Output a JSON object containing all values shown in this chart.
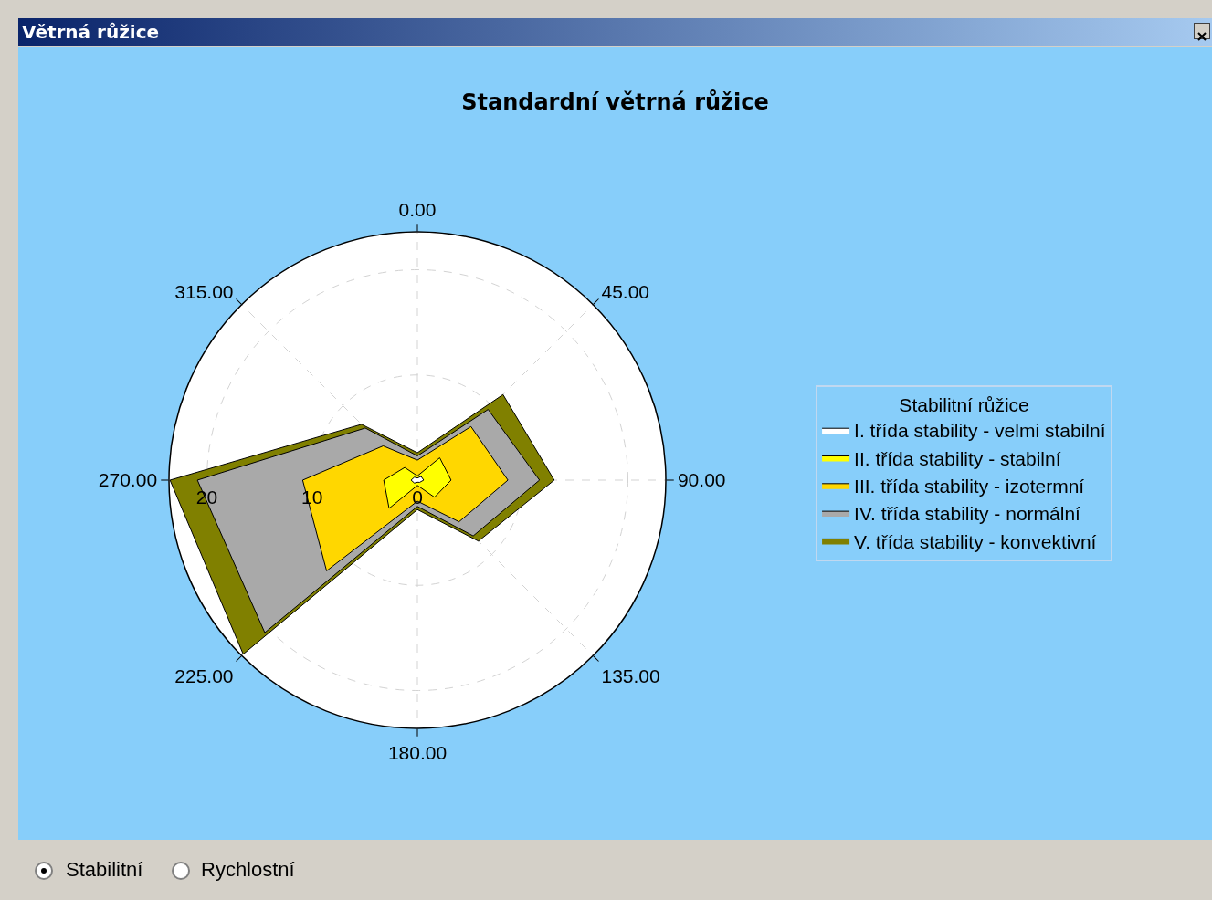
{
  "chart_data": {
    "type": "radar",
    "title": "Standardní větrná růžice",
    "legend_title": "Stabilitní růžice",
    "legend": "right",
    "grid": true,
    "annotations": [
      "Větrná růžice",
      "Stabilitní",
      "Rychlostní"
    ],
    "categories": [
      "0.00",
      "45.00",
      "90.00",
      "135.00",
      "180.00",
      "225.00",
      "270.00",
      "315.00"
    ],
    "ylim": [
      0,
      23.6
    ],
    "yticks": [
      0,
      10,
      20
    ],
    "series": [
      {
        "name": "I. třída stability - velmi stabilní",
        "color": "#ffffff",
        "values": [
          0.2,
          0.5,
          0.6,
          0.3,
          0.2,
          0.4,
          0.6,
          0.4
        ]
      },
      {
        "name": "II. třída stability - stabilní",
        "color": "#ffff00",
        "values": [
          0.4,
          3.0,
          3.2,
          2.3,
          0.5,
          3.8,
          3.2,
          1.7
        ]
      },
      {
        "name": "III. třída stability - izotermní",
        "color": "#ffd700",
        "values": [
          1.9,
          7.2,
          8.6,
          5.6,
          2.0,
          12.2,
          10.9,
          4.6
        ]
      },
      {
        "name": "IV. třída stability - normální",
        "color": "#a9a9a9",
        "values": [
          2.3,
          9.5,
          11.6,
          7.5,
          2.5,
          20.5,
          20.9,
          7.0
        ]
      },
      {
        "name": "V. třída stability - konvektivní",
        "color": "#808000",
        "values": [
          2.6,
          11.5,
          13.0,
          8.2,
          2.8,
          23.4,
          23.5,
          7.5
        ]
      }
    ]
  }
}
